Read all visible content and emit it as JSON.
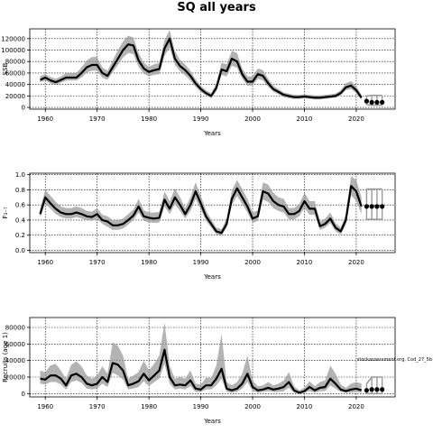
{
  "title": "SQ all years",
  "chart_data": [
    {
      "type": "line",
      "title": "SQ all years",
      "xlabel": "Years",
      "ylabel": "SSB",
      "xlim": [
        1957,
        2027.5
      ],
      "ylim": [
        -3000,
        137000
      ],
      "xticks": [
        1960,
        1970,
        1980,
        1990,
        2000,
        2010,
        2020
      ],
      "yticks": [
        0,
        20000,
        40000,
        60000,
        80000,
        100000,
        120000
      ],
      "ytick_labels": [
        "0",
        "20000",
        "40000",
        "60000",
        "80000",
        "100000",
        "120000"
      ],
      "grid": true,
      "x": [
        1959,
        1960,
        1961,
        1962,
        1963,
        1964,
        1965,
        1966,
        1967,
        1968,
        1969,
        1970,
        1971,
        1972,
        1973,
        1974,
        1975,
        1976,
        1977,
        1978,
        1979,
        1980,
        1981,
        1982,
        1983,
        1984,
        1985,
        1986,
        1987,
        1988,
        1989,
        1990,
        1991,
        1992,
        1993,
        1994,
        1995,
        1996,
        1997,
        1998,
        1999,
        2000,
        2001,
        2002,
        2003,
        2004,
        2005,
        2006,
        2007,
        2008,
        2009,
        2010,
        2011,
        2012,
        2013,
        2014,
        2015,
        2016,
        2017,
        2018,
        2019,
        2020,
        2021
      ],
      "series": [
        {
          "values": [
            48000,
            52000,
            47000,
            44000,
            48000,
            52000,
            52000,
            52000,
            60000,
            70000,
            74000,
            74000,
            60000,
            55000,
            70000,
            85000,
            100000,
            110000,
            108000,
            82000,
            68000,
            62000,
            65000,
            67000,
            103000,
            120000,
            85000,
            72000,
            65000,
            55000,
            42000,
            32000,
            25000,
            20000,
            34000,
            66000,
            63000,
            85000,
            80000,
            58000,
            45000,
            45000,
            58000,
            55000,
            42000,
            32000,
            27000,
            22000,
            20000,
            18000,
            18000,
            19000,
            18000,
            17000,
            17000,
            18000,
            19000,
            20000,
            25000,
            35000,
            38000,
            30000,
            17000
          ],
          "lower": [
            44000,
            47000,
            42000,
            39000,
            43000,
            47000,
            47000,
            47000,
            52000,
            61000,
            64000,
            64000,
            52000,
            48000,
            61000,
            74000,
            87000,
            95000,
            93000,
            71000,
            59000,
            54000,
            57000,
            58000,
            90000,
            104000,
            74000,
            63000,
            56000,
            47000,
            36000,
            27000,
            21000,
            16000,
            28000,
            57000,
            54000,
            73000,
            69000,
            50000,
            38000,
            38000,
            50000,
            47000,
            36000,
            27000,
            23000,
            18000,
            16000,
            15000,
            15000,
            16000,
            15000,
            14000,
            14000,
            15000,
            16000,
            17000,
            21000,
            30000,
            32000,
            25000,
            13000
          ],
          "upper": [
            55000,
            58000,
            53000,
            50000,
            54000,
            60000,
            60000,
            60000,
            70000,
            82000,
            88000,
            88000,
            70000,
            64000,
            82000,
            100000,
            115000,
            125000,
            122000,
            95000,
            78000,
            71000,
            75000,
            78000,
            118000,
            135000,
            98000,
            83000,
            75000,
            64000,
            49000,
            38000,
            30000,
            25000,
            42000,
            78000,
            75000,
            99000,
            95000,
            68000,
            54000,
            54000,
            68000,
            65000,
            50000,
            38000,
            32000,
            26000,
            24000,
            22000,
            22000,
            23000,
            22000,
            21000,
            21000,
            22000,
            23000,
            24000,
            30000,
            42000,
            46000,
            37000,
            22000
          ]
        }
      ],
      "projection": {
        "x": [
          2022,
          2023,
          2024,
          2025
        ],
        "values": [
          11000,
          9000,
          9000,
          9000
        ],
        "lower": [
          5000,
          4000,
          4000,
          4000
        ],
        "upper": [
          20000,
          21000,
          21000,
          21000
        ]
      }
    },
    {
      "type": "line",
      "xlabel": "Years",
      "ylabel": "F₃₋₇",
      "xlim": [
        1957,
        2027.5
      ],
      "ylim": [
        -0.03,
        1.02
      ],
      "xticks": [
        1960,
        1970,
        1980,
        1990,
        2000,
        2010,
        2020
      ],
      "yticks": [
        0.0,
        0.2,
        0.4,
        0.6,
        0.8,
        1.0
      ],
      "ytick_labels": [
        "0.0",
        "0.2",
        "0.4",
        "0.6",
        "0.8",
        "1.0"
      ],
      "grid": true,
      "x": [
        1959,
        1960,
        1961,
        1962,
        1963,
        1964,
        1965,
        1966,
        1967,
        1968,
        1969,
        1970,
        1971,
        1972,
        1973,
        1974,
        1975,
        1976,
        1977,
        1978,
        1979,
        1980,
        1981,
        1982,
        1983,
        1984,
        1985,
        1986,
        1987,
        1988,
        1989,
        1990,
        1991,
        1992,
        1993,
        1994,
        1995,
        1996,
        1997,
        1998,
        1999,
        2000,
        2001,
        2002,
        2003,
        2004,
        2005,
        2006,
        2007,
        2008,
        2009,
        2010,
        2011,
        2012,
        2013,
        2014,
        2015,
        2016,
        2017,
        2018,
        2019,
        2020,
        2021
      ],
      "series": [
        {
          "values": [
            0.48,
            0.7,
            0.62,
            0.55,
            0.5,
            0.48,
            0.48,
            0.5,
            0.48,
            0.45,
            0.44,
            0.48,
            0.4,
            0.38,
            0.33,
            0.33,
            0.35,
            0.4,
            0.46,
            0.58,
            0.45,
            0.43,
            0.42,
            0.43,
            0.67,
            0.55,
            0.7,
            0.6,
            0.48,
            0.6,
            0.78,
            0.62,
            0.45,
            0.35,
            0.25,
            0.23,
            0.35,
            0.68,
            0.82,
            0.7,
            0.58,
            0.42,
            0.45,
            0.78,
            0.75,
            0.65,
            0.6,
            0.58,
            0.48,
            0.48,
            0.52,
            0.65,
            0.55,
            0.55,
            0.32,
            0.35,
            0.42,
            0.3,
            0.25,
            0.4,
            0.85,
            0.78,
            0.58
          ],
          "lower": [
            0.43,
            0.62,
            0.55,
            0.48,
            0.44,
            0.42,
            0.42,
            0.44,
            0.42,
            0.4,
            0.39,
            0.42,
            0.35,
            0.31,
            0.27,
            0.27,
            0.29,
            0.34,
            0.4,
            0.5,
            0.39,
            0.37,
            0.36,
            0.37,
            0.58,
            0.48,
            0.61,
            0.52,
            0.42,
            0.52,
            0.68,
            0.54,
            0.39,
            0.3,
            0.21,
            0.2,
            0.3,
            0.6,
            0.72,
            0.61,
            0.5,
            0.36,
            0.39,
            0.67,
            0.64,
            0.56,
            0.52,
            0.5,
            0.41,
            0.41,
            0.45,
            0.56,
            0.47,
            0.47,
            0.27,
            0.3,
            0.36,
            0.25,
            0.21,
            0.34,
            0.73,
            0.65,
            0.48
          ],
          "upper": [
            0.55,
            0.8,
            0.72,
            0.64,
            0.58,
            0.56,
            0.56,
            0.58,
            0.56,
            0.52,
            0.51,
            0.56,
            0.47,
            0.45,
            0.4,
            0.4,
            0.42,
            0.48,
            0.54,
            0.68,
            0.53,
            0.5,
            0.5,
            0.51,
            0.78,
            0.65,
            0.82,
            0.7,
            0.56,
            0.7,
            0.9,
            0.72,
            0.53,
            0.41,
            0.3,
            0.28,
            0.42,
            0.79,
            0.93,
            0.81,
            0.68,
            0.5,
            0.53,
            0.9,
            0.87,
            0.76,
            0.7,
            0.68,
            0.56,
            0.56,
            0.61,
            0.76,
            0.65,
            0.65,
            0.38,
            0.42,
            0.5,
            0.36,
            0.3,
            0.48,
            0.98,
            0.93,
            0.7
          ]
        }
      ],
      "projection": {
        "x": [
          2022,
          2023,
          2024,
          2025
        ],
        "values": [
          0.58,
          0.58,
          0.58,
          0.58
        ],
        "lower": [
          0.41,
          0.41,
          0.41,
          0.41
        ],
        "upper": [
          0.81,
          0.81,
          0.81,
          0.81
        ]
      }
    },
    {
      "type": "line",
      "xlabel": "Years",
      "ylabel": "Recruits (age 1)",
      "xlim": [
        1957,
        2027.5
      ],
      "ylim": [
        -4000,
        92000
      ],
      "xticks": [
        1960,
        1970,
        1980,
        1990,
        2000,
        2010,
        2020
      ],
      "yticks": [
        0,
        20000,
        40000,
        60000,
        80000
      ],
      "ytick_labels": [
        "0",
        "20000",
        "40000",
        "60000",
        "80000"
      ],
      "grid": true,
      "annotation": "stockassessment.org, Cod_27_5b",
      "x": [
        1959,
        1960,
        1961,
        1962,
        1963,
        1964,
        1965,
        1966,
        1967,
        1968,
        1969,
        1970,
        1971,
        1972,
        1973,
        1974,
        1975,
        1976,
        1977,
        1978,
        1979,
        1980,
        1981,
        1982,
        1983,
        1984,
        1985,
        1986,
        1987,
        1988,
        1989,
        1990,
        1991,
        1992,
        1993,
        1994,
        1995,
        1996,
        1997,
        1998,
        1999,
        2000,
        2001,
        2002,
        2003,
        2004,
        2005,
        2006,
        2007,
        2008,
        2009,
        2010,
        2011,
        2012,
        2013,
        2014,
        2015,
        2016,
        2017,
        2018,
        2019,
        2020,
        2021
      ],
      "series": [
        {
          "values": [
            18000,
            17000,
            22000,
            22000,
            18000,
            10000,
            22000,
            24000,
            20000,
            12000,
            10000,
            12000,
            20000,
            14000,
            37000,
            35000,
            28000,
            10000,
            12000,
            15000,
            24000,
            16000,
            22000,
            28000,
            53000,
            20000,
            10000,
            11000,
            10000,
            16000,
            6000,
            5000,
            10000,
            10000,
            18000,
            30000,
            6000,
            4000,
            6000,
            12000,
            24000,
            8000,
            4000,
            5000,
            7000,
            5000,
            6000,
            8000,
            14000,
            4000,
            1000,
            3000,
            8000,
            4000,
            7000,
            8000,
            18000,
            12000,
            5000,
            3000,
            5000,
            6000,
            4000
          ],
          "lower": [
            12000,
            11000,
            14000,
            14000,
            11000,
            5000,
            14000,
            16000,
            13000,
            6000,
            5000,
            6000,
            12000,
            8000,
            25000,
            22000,
            17000,
            5000,
            6000,
            8000,
            15000,
            9000,
            14000,
            18000,
            36000,
            12000,
            5000,
            6000,
            5000,
            9000,
            2000,
            2000,
            5000,
            5000,
            10000,
            18000,
            2000,
            1000,
            2000,
            6000,
            14000,
            3000,
            1000,
            2000,
            3000,
            2000,
            2000,
            3000,
            7000,
            1000,
            0,
            1000,
            3000,
            1000,
            3000,
            3000,
            10000,
            6000,
            2000,
            1000,
            1000,
            2000,
            1000
          ],
          "upper": [
            28000,
            26000,
            34000,
            36000,
            28000,
            18000,
            35000,
            39000,
            33000,
            22000,
            18000,
            22000,
            33000,
            24000,
            62000,
            58000,
            46000,
            18000,
            22000,
            26000,
            40000,
            28000,
            36000,
            46000,
            86000,
            34000,
            18000,
            20000,
            18000,
            28000,
            12000,
            11000,
            19000,
            19000,
            34000,
            72000,
            14000,
            10000,
            14000,
            24000,
            46000,
            16000,
            9000,
            10000,
            14000,
            10000,
            12000,
            16000,
            26000,
            9000,
            4000,
            7000,
            15000,
            9000,
            14000,
            16000,
            34000,
            24000,
            11000,
            7000,
            12000,
            14000,
            12000
          ]
        }
      ],
      "projection": {
        "x": [
          2022,
          2023,
          2024,
          2025
        ],
        "values": [
          4000,
          5000,
          5000,
          5000
        ],
        "lower": [
          0,
          0,
          0,
          0
        ],
        "upper": [
          12000,
          20000,
          20000,
          20000
        ]
      }
    }
  ]
}
